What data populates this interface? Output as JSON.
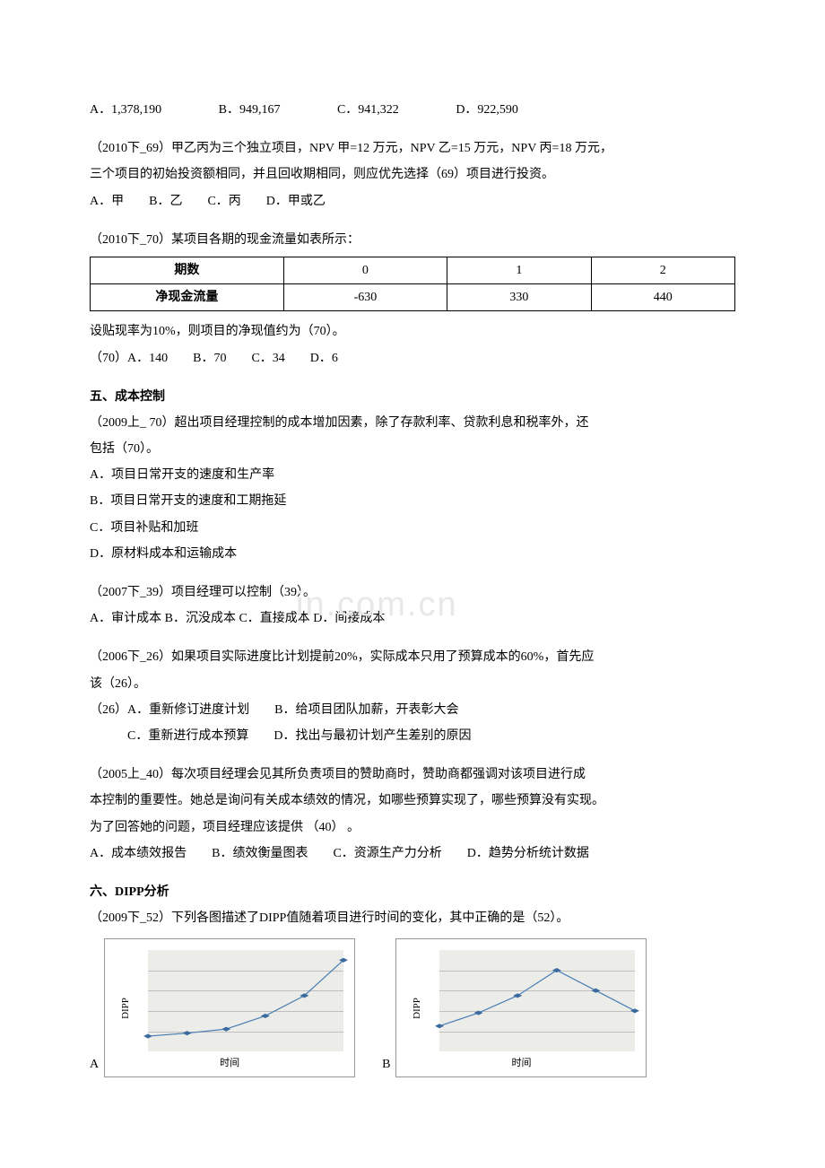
{
  "q68": {
    "options": [
      "A．1,378,190",
      "B．949,167",
      "C．941,322",
      "D．922,590"
    ]
  },
  "q69": {
    "stem1": "（2010下_69）甲乙丙为三个独立项目，NPV 甲=12 万元，NPV 乙=15 万元，NPV 丙=18 万元，",
    "stem2": "三个项目的初始投资额相同，并且回收期相同，则应优先选择（69）项目进行投资。",
    "options": "A．甲　　B．乙　　C．丙　　D．甲或乙"
  },
  "q70_2010b": {
    "stem": "（2010下_70）某项目各期的现金流量如表所示：",
    "table": {
      "headers": [
        "期数",
        "0",
        "1",
        "2"
      ],
      "row": [
        "净现金流量",
        "-630",
        "330",
        "440"
      ]
    },
    "after1": "设贴现率为10%，则项目的净现值约为（70）。",
    "after2": "（70）A．140　　B．70　　C．34　　D．6"
  },
  "section5": {
    "title": "五、成本控制",
    "q70_2009a": {
      "stem1": "（2009上_ 70）超出项目经理控制的成本增加因素，除了存款利率、贷款利息和税率外，还",
      "stem2": "包括（70）。",
      "optA": "A．项目日常开支的速度和生产率",
      "optB": "B．项目日常开支的速度和工期拖延",
      "optC": "C．项目补贴和加班",
      "optD": "D．原材料成本和运输成本"
    },
    "q39": {
      "stem": "（2007下_39）项目经理可以控制（39）。",
      "options": "A．审计成本 B．沉没成本 C．直接成本 D．间接成本"
    },
    "q26": {
      "stem1": "（2006下_26）如果项目实际进度比计划提前20%，实际成本只用了预算成本的60%，首先应",
      "stem2": "该（26）。",
      "line1": "（26）A．重新修订进度计划　　B．给项目团队加薪，开表彰大会",
      "line2": "C．重新进行成本预算　　D．找出与最初计划产生差别的原因"
    },
    "q40": {
      "stem1": "（2005上_40）每次项目经理会见其所负责项目的赞助商时，赞助商都强调对该项目进行成",
      "stem2": "本控制的重要性。她总是询问有关成本绩效的情况，如哪些预算实现了，哪些预算没有实现。",
      "stem3": "为了回答她的问题，项目经理应该提供 （40） 。",
      "options": "A．成本绩效报告　　B．绩效衡量图表　　C．资源生产力分析　　D．趋势分析统计数据"
    }
  },
  "section6": {
    "title": "六、DIPP分析",
    "q52": {
      "stem": "（2009下_52）下列各图描述了DIPP值随着项目进行时间的变化，其中正确的是（52）。"
    }
  },
  "charts": {
    "y_axis_label": "DIPP",
    "x_axis_label": "时间",
    "line_color": "#4a7fb5",
    "marker_color": "#3b6a9e",
    "grid_color": "#bfbfbf",
    "plot_bg": "#ecece8",
    "chartA": {
      "label": "A",
      "points": [
        [
          0,
          15
        ],
        [
          20,
          18
        ],
        [
          40,
          22
        ],
        [
          60,
          35
        ],
        [
          80,
          55
        ],
        [
          100,
          90
        ]
      ]
    },
    "chartB": {
      "label": "B",
      "points": [
        [
          0,
          25
        ],
        [
          20,
          38
        ],
        [
          40,
          55
        ],
        [
          60,
          80
        ],
        [
          80,
          60
        ],
        [
          100,
          40
        ]
      ]
    }
  },
  "watermark": "in.com.cn"
}
